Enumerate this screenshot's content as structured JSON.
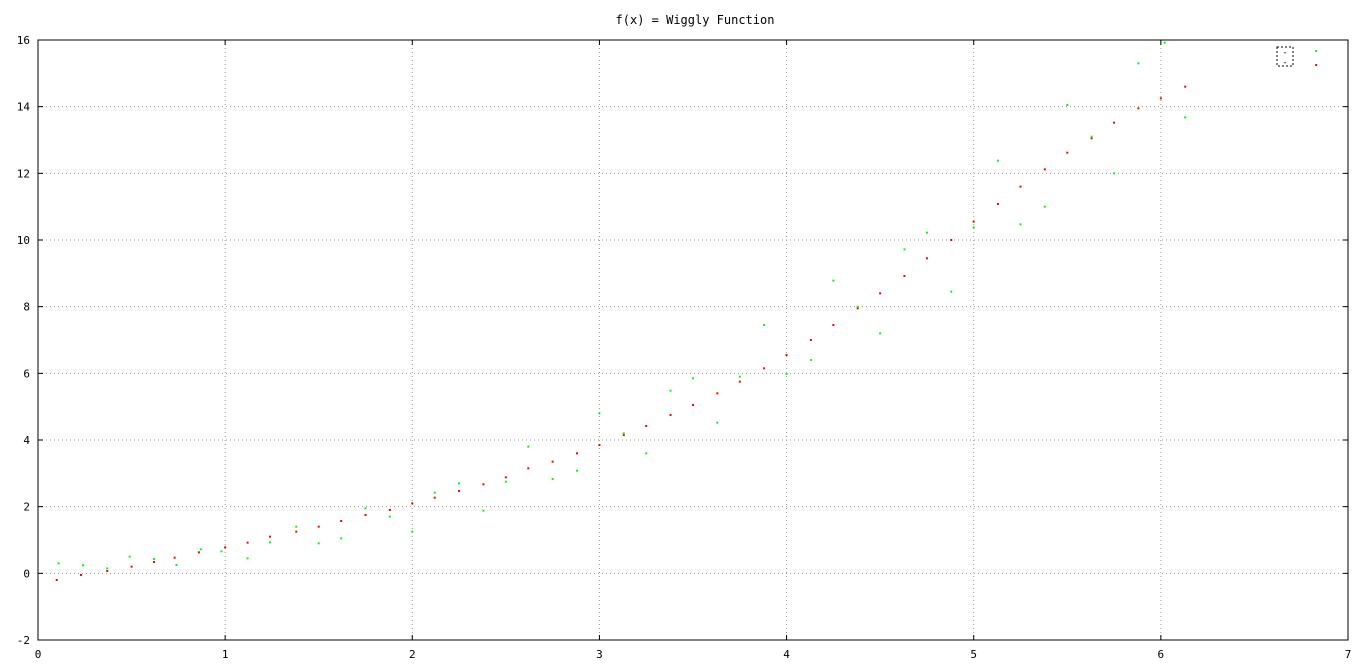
{
  "chart_data": {
    "type": "scatter",
    "title": "f(x) = Wiggly Function",
    "xlabel": "",
    "ylabel": "",
    "xlim": [
      0,
      7
    ],
    "ylim": [
      -2,
      16
    ],
    "xticks": [
      0,
      1,
      2,
      3,
      4,
      5,
      6,
      7
    ],
    "yticks": [
      -2,
      0,
      2,
      4,
      6,
      8,
      10,
      12,
      14,
      16
    ],
    "grid": true,
    "legend": "top-right",
    "series": [
      {
        "color": "#ff0000",
        "x": [
          0.1,
          0.23,
          0.37,
          0.5,
          0.62,
          0.73,
          0.86,
          1.0,
          1.12,
          1.24,
          1.38,
          1.5,
          1.62,
          1.75,
          1.88,
          2.0,
          2.12,
          2.25,
          2.38,
          2.5,
          2.62,
          2.75,
          2.88,
          3.0,
          3.13,
          3.25,
          3.38,
          3.5,
          3.63,
          3.75,
          3.88,
          4.0,
          4.13,
          4.25,
          4.38,
          4.5,
          4.63,
          4.75,
          4.88,
          5.0,
          5.13,
          5.25,
          5.38,
          5.5,
          5.63,
          5.75,
          5.88,
          6.0,
          6.13,
          6.83
        ],
        "y": [
          -0.2,
          -0.05,
          0.07,
          0.2,
          0.34,
          0.47,
          0.63,
          0.78,
          0.92,
          1.1,
          1.25,
          1.4,
          1.57,
          1.75,
          1.9,
          2.1,
          2.27,
          2.47,
          2.67,
          2.88,
          3.15,
          3.35,
          3.6,
          3.85,
          4.15,
          4.42,
          4.75,
          5.05,
          5.4,
          5.75,
          6.15,
          6.55,
          7.0,
          7.45,
          7.95,
          8.4,
          8.92,
          9.45,
          10.0,
          10.55,
          11.08,
          11.6,
          12.12,
          12.62,
          13.05,
          13.52,
          13.95,
          14.25,
          14.6,
          15.25
        ]
      },
      {
        "color": "#00ff00",
        "x": [
          0.11,
          0.24,
          0.37,
          0.49,
          0.62,
          0.74,
          0.87,
          0.98,
          1.12,
          1.24,
          1.38,
          1.5,
          1.62,
          1.75,
          1.88,
          2.0,
          2.12,
          2.25,
          2.38,
          2.5,
          2.62,
          2.75,
          2.88,
          3.0,
          3.13,
          3.25,
          3.38,
          3.5,
          3.63,
          3.75,
          3.88,
          4.0,
          4.13,
          4.25,
          4.38,
          4.5,
          4.63,
          4.75,
          4.88,
          5.0,
          5.13,
          5.25,
          5.38,
          5.5,
          5.63,
          5.75,
          5.88,
          6.02,
          6.13,
          6.83
        ],
        "y": [
          0.3,
          0.24,
          0.15,
          0.5,
          0.43,
          0.25,
          0.72,
          0.66,
          0.45,
          0.93,
          1.4,
          0.9,
          1.05,
          1.95,
          1.7,
          1.25,
          2.42,
          2.7,
          1.88,
          2.75,
          3.8,
          2.83,
          3.08,
          4.8,
          4.2,
          3.6,
          5.48,
          5.85,
          4.52,
          5.9,
          7.45,
          5.98,
          6.4,
          8.78,
          8.0,
          7.2,
          9.72,
          10.22,
          8.45,
          10.38,
          12.38,
          10.47,
          11.0,
          14.05,
          13.1,
          12.0,
          15.3,
          15.92,
          13.68,
          15.67
        ]
      }
    ]
  },
  "legend": {
    "glyph_top": "-",
    "glyph_bottom": "-"
  }
}
